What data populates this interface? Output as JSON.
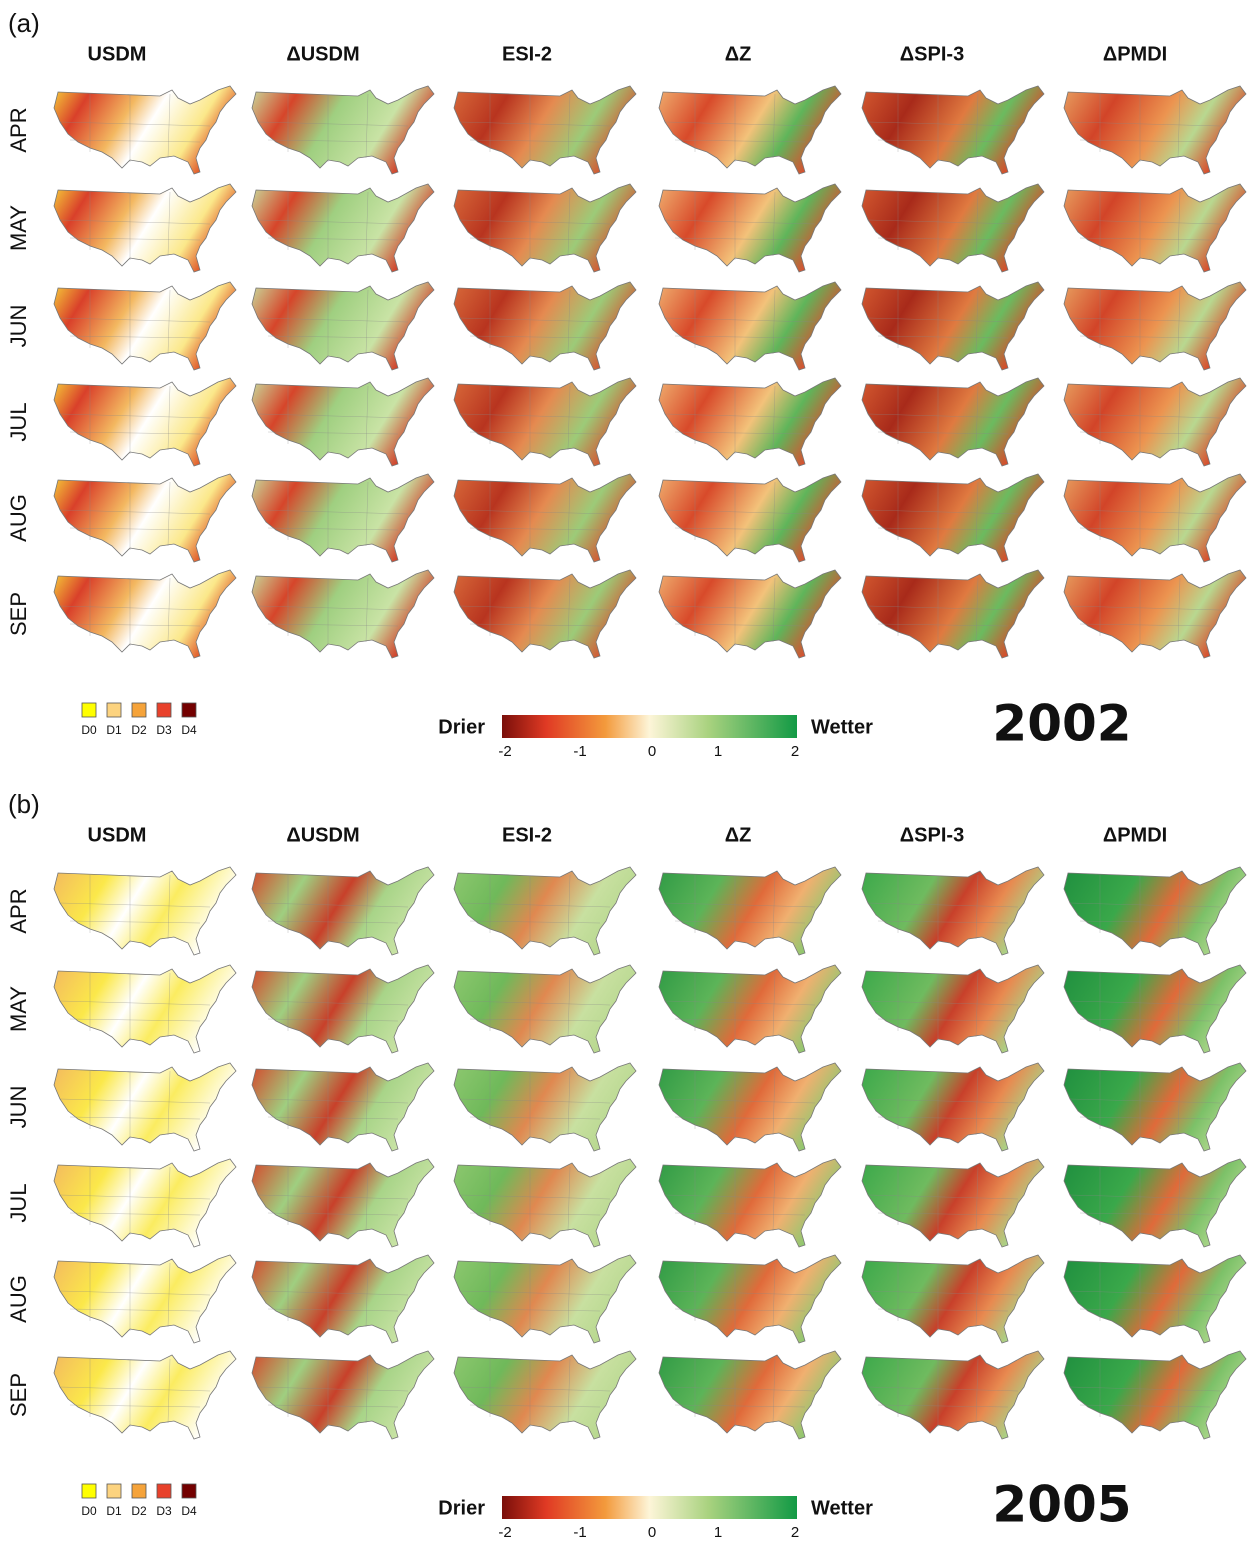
{
  "panels": [
    {
      "label": "(a)",
      "columns": [
        "USDM",
        "ΔUSDM",
        "ESI-2",
        "ΔZ",
        "ΔSPI-3",
        "ΔPMDI"
      ],
      "rows": [
        "APR",
        "MAY",
        "JUN",
        "JUL",
        "AUG",
        "SEP"
      ],
      "legend": {
        "classes": [
          "D0",
          "D1",
          "D2",
          "D3",
          "D4"
        ]
      },
      "colorbar": {
        "low_label": "Drier",
        "high_label": "Wetter",
        "ticks": [
          -2,
          -1,
          0,
          1,
          2
        ]
      },
      "year": "2002"
    },
    {
      "label": "(b)",
      "columns": [
        "USDM",
        "ΔUSDM",
        "ESI-2",
        "ΔZ",
        "ΔSPI-3",
        "ΔPMDI"
      ],
      "rows": [
        "APR",
        "MAY",
        "JUN",
        "JUL",
        "AUG",
        "SEP"
      ],
      "legend": {
        "classes": [
          "D0",
          "D1",
          "D2",
          "D3",
          "D4"
        ]
      },
      "colorbar": {
        "low_label": "Drier",
        "high_label": "Wetter",
        "ticks": [
          -2,
          -1,
          0,
          1,
          2
        ]
      },
      "year": "2005"
    }
  ]
}
